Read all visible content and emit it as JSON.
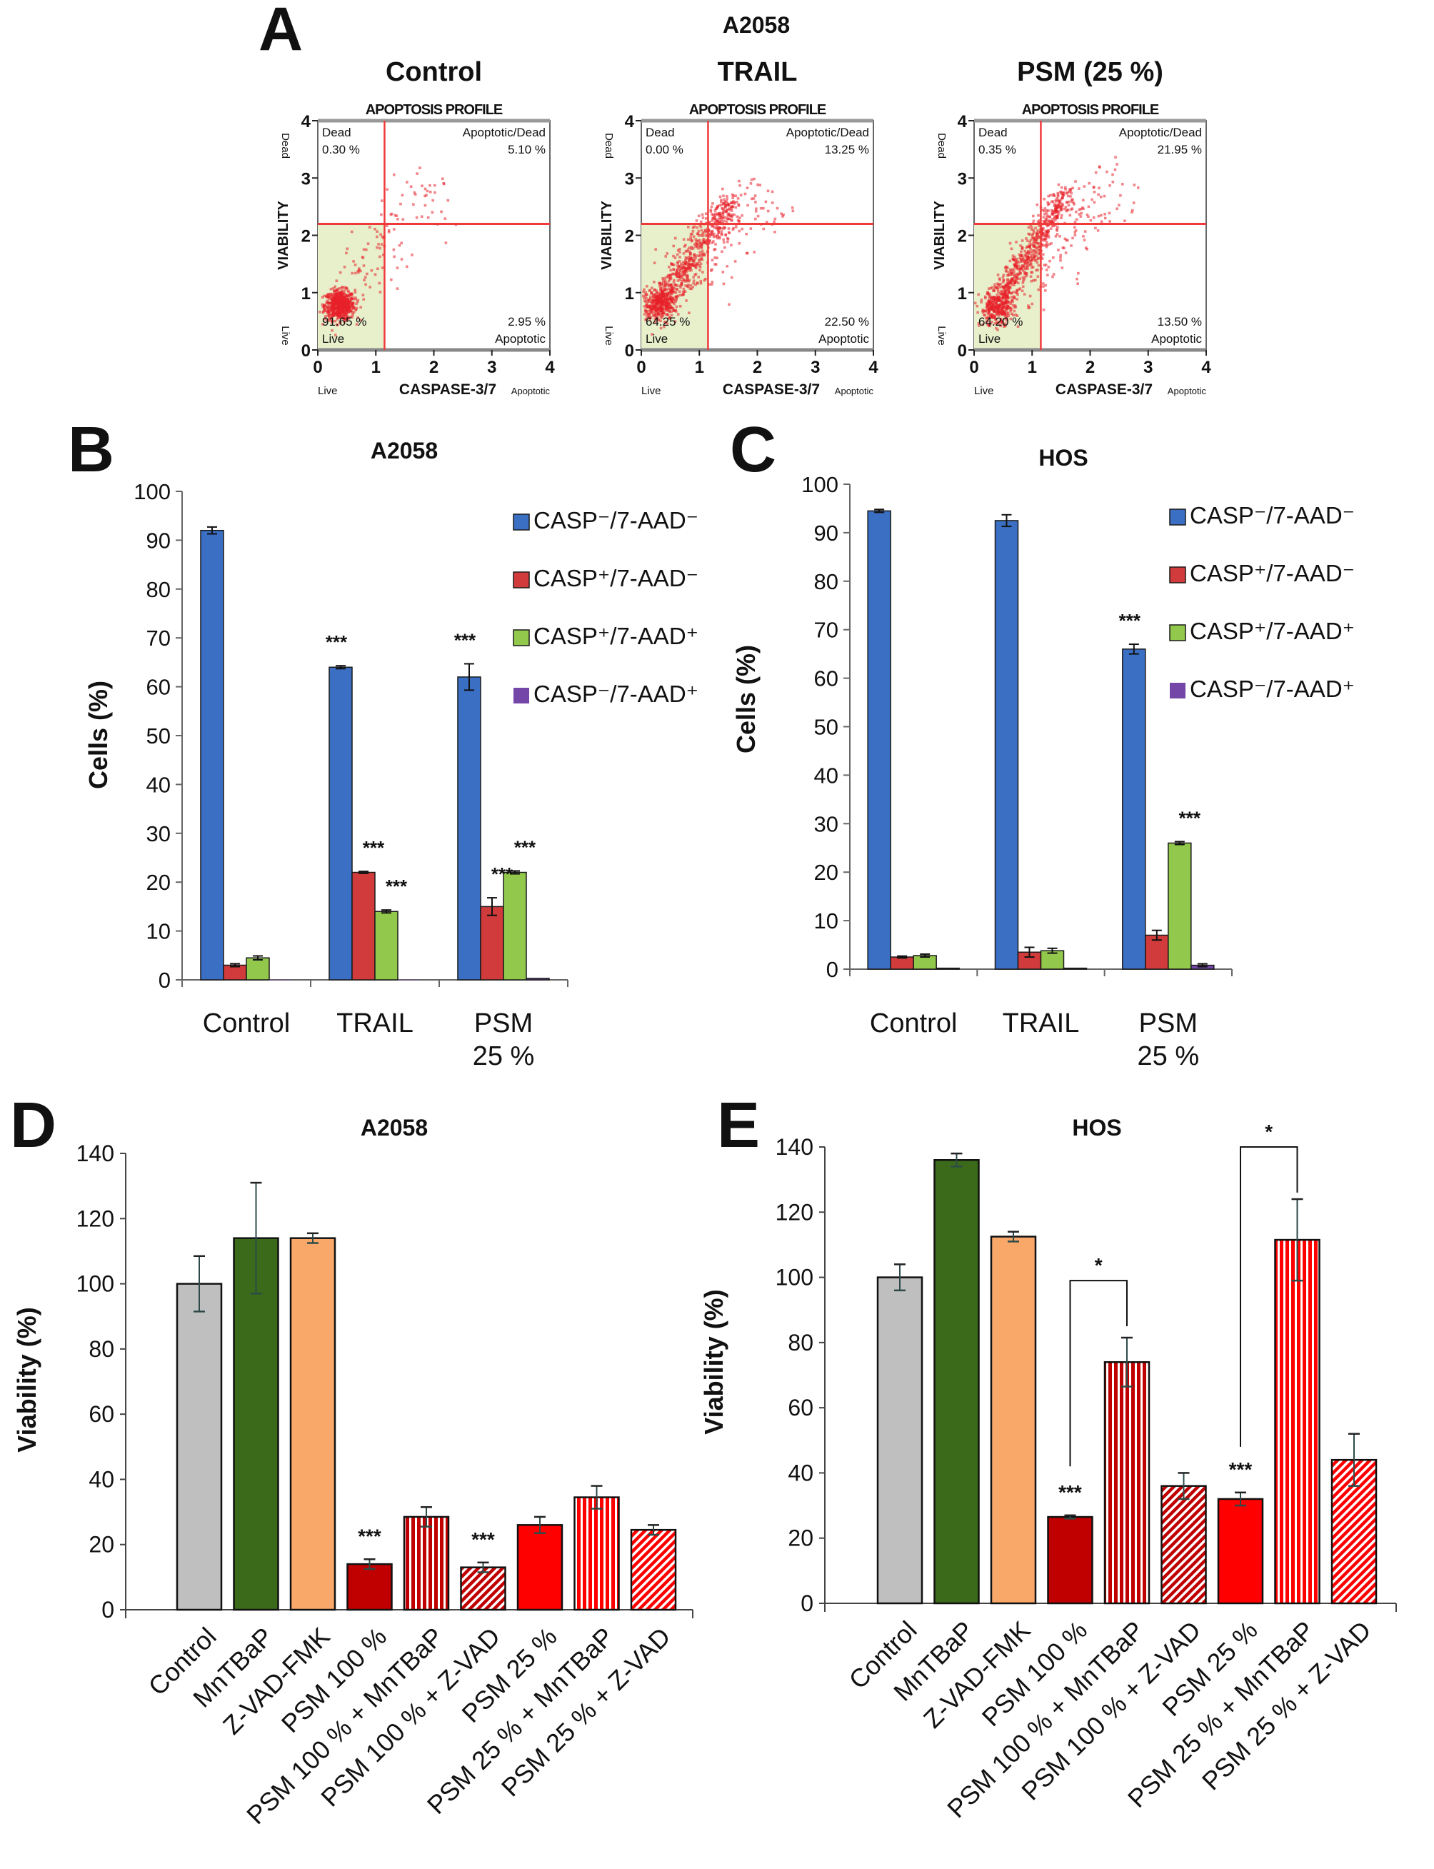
{
  "chart_data": [
    {
      "panel": "A",
      "panel_letter": "A",
      "group_title": "A2058",
      "type": "scatter",
      "title": "Control",
      "subtitle": "APOPTOSIS PROFILE",
      "xlabel": "CASPASE-3/7",
      "xlabel_left": "Live",
      "xlabel_right": "Apoptotic",
      "ylabel": "VIABILITY",
      "ylabel_top": "Dead",
      "ylabel_bottom": "Live",
      "xlim": [
        0,
        4
      ],
      "ylim": [
        0,
        4
      ],
      "xticks": [
        0,
        1,
        2,
        3,
        4
      ],
      "yticks": [
        0,
        1,
        2,
        3,
        4
      ],
      "gates": {
        "x": 1.15,
        "y": 2.2
      },
      "quadrants": {
        "dead": {
          "label": "Dead",
          "value": "0.30 %"
        },
        "apoptotic_dead": {
          "label": "Apoptotic/Dead",
          "value": "5.10 %"
        },
        "live": {
          "label": "Live",
          "value": "91.65 %"
        },
        "apoptotic": {
          "label": "Apoptotic",
          "value": "2.95 %"
        }
      },
      "colors": {
        "points": "#e8202a",
        "gate": "#f03a3a",
        "live_region": "#e7efcb"
      }
    },
    {
      "panel": "A",
      "type": "scatter",
      "title": "TRAIL",
      "subtitle": "APOPTOSIS PROFILE",
      "xlabel": "CASPASE-3/7",
      "xlabel_left": "Live",
      "xlabel_right": "Apoptotic",
      "ylabel": "VIABILITY",
      "ylabel_top": "Dead",
      "ylabel_bottom": "Live",
      "xlim": [
        0,
        4
      ],
      "ylim": [
        0,
        4
      ],
      "xticks": [
        0,
        1,
        2,
        3,
        4
      ],
      "yticks": [
        0,
        1,
        2,
        3,
        4
      ],
      "gates": {
        "x": 1.15,
        "y": 2.2
      },
      "quadrants": {
        "dead": {
          "label": "Dead",
          "value": "0.00 %"
        },
        "apoptotic_dead": {
          "label": "Apoptotic/Dead",
          "value": "13.25 %"
        },
        "live": {
          "label": "Live",
          "value": "64.25 %"
        },
        "apoptotic": {
          "label": "Apoptotic",
          "value": "22.50 %"
        }
      },
      "colors": {
        "points": "#e8202a",
        "gate": "#f03a3a",
        "live_region": "#e7efcb"
      }
    },
    {
      "panel": "A",
      "type": "scatter",
      "title": "PSM (25 %)",
      "subtitle": "APOPTOSIS PROFILE",
      "xlabel": "CASPASE-3/7",
      "xlabel_left": "Live",
      "xlabel_right": "Apoptotic",
      "ylabel": "VIABILITY",
      "ylabel_top": "Dead",
      "ylabel_bottom": "Live",
      "xlim": [
        0,
        4
      ],
      "ylim": [
        0,
        4
      ],
      "xticks": [
        0,
        1,
        2,
        3,
        4
      ],
      "yticks": [
        0,
        1,
        2,
        3,
        4
      ],
      "gates": {
        "x": 1.15,
        "y": 2.2
      },
      "quadrants": {
        "dead": {
          "label": "Dead",
          "value": "0.35 %"
        },
        "apoptotic_dead": {
          "label": "Apoptotic/Dead",
          "value": "21.95 %"
        },
        "live": {
          "label": "Live",
          "value": "64.20 %"
        },
        "apoptotic": {
          "label": "Apoptotic",
          "value": "13.50 %"
        }
      },
      "colors": {
        "points": "#e8202a",
        "gate": "#f03a3a",
        "live_region": "#e7efcb"
      }
    },
    {
      "panel": "B",
      "panel_letter": "B",
      "type": "bar",
      "title": "A2058",
      "xlabel": "",
      "ylabel": "Cells (%)",
      "ylim": [
        0,
        100
      ],
      "yticks": [
        0,
        10,
        20,
        30,
        40,
        50,
        60,
        70,
        80,
        90,
        100
      ],
      "categories": [
        [
          "Control"
        ],
        [
          "TRAIL"
        ],
        [
          "PSM",
          "25 %"
        ]
      ],
      "legend_position": "top-right",
      "grid": false,
      "series": [
        {
          "name": "CASP⁻/7-AAD⁻",
          "color": "#3a6fc4",
          "values": [
            92,
            64,
            62
          ],
          "errors": [
            0.7,
            0.3,
            2.7
          ]
        },
        {
          "name": "CASP⁺/7-AAD⁻",
          "color": "#d13b3b",
          "values": [
            3,
            22,
            15
          ],
          "errors": [
            0.3,
            0.2,
            1.8
          ]
        },
        {
          "name": "CASP⁺/7-AAD⁺",
          "color": "#92c84c",
          "values": [
            4.5,
            14,
            22
          ],
          "errors": [
            0.4,
            0.3,
            0.3
          ]
        },
        {
          "name": "CASP⁻/7-AAD⁺",
          "color": "#7446a8",
          "values": [
            0,
            0,
            0.3
          ],
          "errors": [
            0,
            0,
            0
          ]
        }
      ],
      "annotations": [
        {
          "category": 1,
          "series": 0,
          "text": "***"
        },
        {
          "category": 1,
          "series": 1,
          "text": "***"
        },
        {
          "category": 1,
          "series": 2,
          "text": "***"
        },
        {
          "category": 2,
          "series": 0,
          "text": "***"
        },
        {
          "category": 2,
          "series": 1,
          "text": "***"
        },
        {
          "category": 2,
          "series": 2,
          "text": "***"
        }
      ]
    },
    {
      "panel": "C",
      "panel_letter": "C",
      "type": "bar",
      "title": "HOS",
      "xlabel": "",
      "ylabel": "Cells (%)",
      "ylim": [
        0,
        100
      ],
      "yticks": [
        0,
        10,
        20,
        30,
        40,
        50,
        60,
        70,
        80,
        90,
        100
      ],
      "categories": [
        [
          "Control"
        ],
        [
          "TRAIL"
        ],
        [
          "PSM",
          "25 %"
        ]
      ],
      "legend_position": "top-right",
      "grid": false,
      "series": [
        {
          "name": "CASP⁻/7-AAD⁻",
          "color": "#3a6fc4",
          "values": [
            94.5,
            92.5,
            66
          ],
          "errors": [
            0.3,
            1.2,
            1
          ]
        },
        {
          "name": "CASP⁺/7-AAD⁻",
          "color": "#d13b3b",
          "values": [
            2.5,
            3.5,
            7
          ],
          "errors": [
            0.2,
            1,
            1
          ]
        },
        {
          "name": "CASP⁺/7-AAD⁺",
          "color": "#92c84c",
          "values": [
            2.8,
            3.8,
            26
          ],
          "errors": [
            0.3,
            0.5,
            0.3
          ]
        },
        {
          "name": "CASP⁻/7-AAD⁺",
          "color": "#7446a8",
          "values": [
            0.2,
            0.2,
            0.8
          ],
          "errors": [
            0,
            0,
            0.3
          ]
        }
      ],
      "annotations": [
        {
          "category": 2,
          "series": 0,
          "text": "***"
        },
        {
          "category": 2,
          "series": 2,
          "text": "***"
        }
      ]
    },
    {
      "panel": "D",
      "panel_letter": "D",
      "type": "bar",
      "title": "A2058",
      "xlabel": "",
      "ylabel": "Viability (%)",
      "ylim": [
        0,
        140
      ],
      "yticks": [
        0,
        20,
        40,
        60,
        80,
        100,
        120,
        140
      ],
      "grid": false,
      "categories": [
        "Control",
        "MnTBaP",
        "Z-VAD-FMK",
        "PSM 100 %",
        "PSM 100 % + MnTBaP",
        "PSM 100 % + Z-VAD",
        "PSM 25 %",
        "PSM 25 % + MnTBaP",
        "PSM 25 % + Z-VAD"
      ],
      "values": [
        100,
        114,
        114,
        14,
        28.5,
        13,
        26,
        34.5,
        24.5
      ],
      "errors": [
        8.5,
        17,
        1.5,
        1.5,
        3,
        1.5,
        2.5,
        3.5,
        1.5
      ],
      "bar_styles": [
        {
          "color": "#bfbfbf",
          "fill": "solid"
        },
        {
          "color": "#3b6b1a",
          "fill": "solid"
        },
        {
          "color": "#f9a86a",
          "fill": "solid"
        },
        {
          "color": "#c00000",
          "fill": "solid"
        },
        {
          "color": "#c00000",
          "fill": "vertical-stripes"
        },
        {
          "color": "#c00000",
          "fill": "diagonal-stripes"
        },
        {
          "color": "#ff0000",
          "fill": "solid"
        },
        {
          "color": "#ff0000",
          "fill": "vertical-stripes"
        },
        {
          "color": "#ff0000",
          "fill": "diagonal-stripes"
        }
      ],
      "annotations": [
        {
          "index": 3,
          "text": "***"
        },
        {
          "index": 5,
          "text": "***"
        }
      ],
      "brackets": []
    },
    {
      "panel": "E",
      "panel_letter": "E",
      "type": "bar",
      "title": "HOS",
      "xlabel": "",
      "ylabel": "Viability (%)",
      "ylim": [
        0,
        140
      ],
      "yticks": [
        0,
        20,
        40,
        60,
        80,
        100,
        120,
        140
      ],
      "grid": false,
      "categories": [
        "Control",
        "MnTBaP",
        "Z-VAD-FMK",
        "PSM 100 %",
        "PSM 100 % + MnTBaP",
        "PSM 100 % + Z-VAD",
        "PSM 25 %",
        "PSM 25 % + MnTBaP",
        "PSM 25 % + Z-VAD"
      ],
      "values": [
        100,
        136,
        112.5,
        26.5,
        74,
        36,
        32,
        111.5,
        44
      ],
      "errors": [
        4,
        2,
        1.5,
        0.5,
        7.5,
        4,
        2,
        12.5,
        8
      ],
      "bar_styles": [
        {
          "color": "#bfbfbf",
          "fill": "solid"
        },
        {
          "color": "#3b6b1a",
          "fill": "solid"
        },
        {
          "color": "#f9a86a",
          "fill": "solid"
        },
        {
          "color": "#c00000",
          "fill": "solid"
        },
        {
          "color": "#c00000",
          "fill": "vertical-stripes"
        },
        {
          "color": "#c00000",
          "fill": "diagonal-stripes"
        },
        {
          "color": "#ff0000",
          "fill": "solid"
        },
        {
          "color": "#ff0000",
          "fill": "vertical-stripes"
        },
        {
          "color": "#ff0000",
          "fill": "diagonal-stripes"
        }
      ],
      "annotations": [
        {
          "index": 3,
          "text": "***"
        },
        {
          "index": 6,
          "text": "***"
        }
      ],
      "brackets": [
        {
          "from": 3,
          "to": 4,
          "top": 99,
          "from_end": 42,
          "to_end": 85,
          "text": "*"
        },
        {
          "from": 6,
          "to": 7,
          "top": 140,
          "from_end": 48,
          "to_end": 126,
          "text": "*"
        }
      ]
    }
  ]
}
